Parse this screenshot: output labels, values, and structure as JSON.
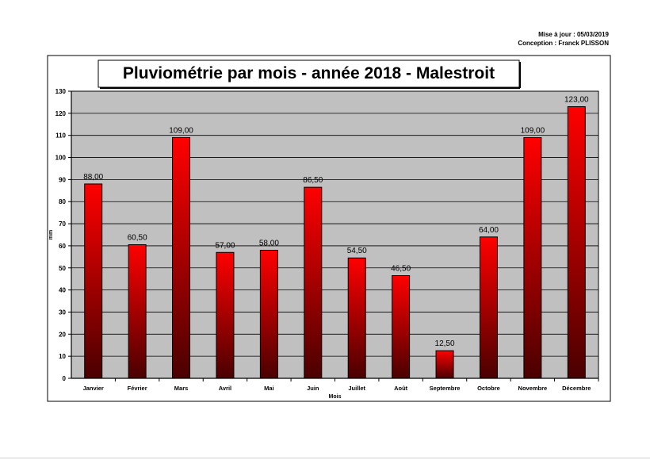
{
  "meta": {
    "update_line": "Mise à jour : 05/03/2019",
    "design_line": "Conception : Franck PLISSON"
  },
  "colors": {
    "plot_background": "#c0c0c0",
    "bar_top": "#ff0000",
    "bar_bottom": "#4a0000",
    "bar_border": "#000000"
  },
  "chart_data": {
    "type": "bar",
    "title": "Pluviométrie par mois - année 2018 - Malestroit",
    "xlabel": "Mois",
    "ylabel": "mm",
    "ylim": [
      0,
      130
    ],
    "yticks": [
      0,
      10,
      20,
      30,
      40,
      50,
      60,
      70,
      80,
      90,
      100,
      110,
      120,
      130
    ],
    "grid": true,
    "categories": [
      "Janvier",
      "Février",
      "Mars",
      "Avril",
      "Mai",
      "Juin",
      "Juillet",
      "Août",
      "Septembre",
      "Octobre",
      "Novembre",
      "Décembre"
    ],
    "values": [
      88.0,
      60.5,
      109.0,
      57.0,
      58.0,
      86.5,
      54.5,
      46.5,
      12.5,
      64.0,
      109.0,
      123.0
    ],
    "value_labels": [
      "88,00",
      "60,50",
      "109,00",
      "57,00",
      "58,00",
      "86,50",
      "54,50",
      "46,50",
      "12,50",
      "64,00",
      "109,00",
      "123,00"
    ]
  }
}
